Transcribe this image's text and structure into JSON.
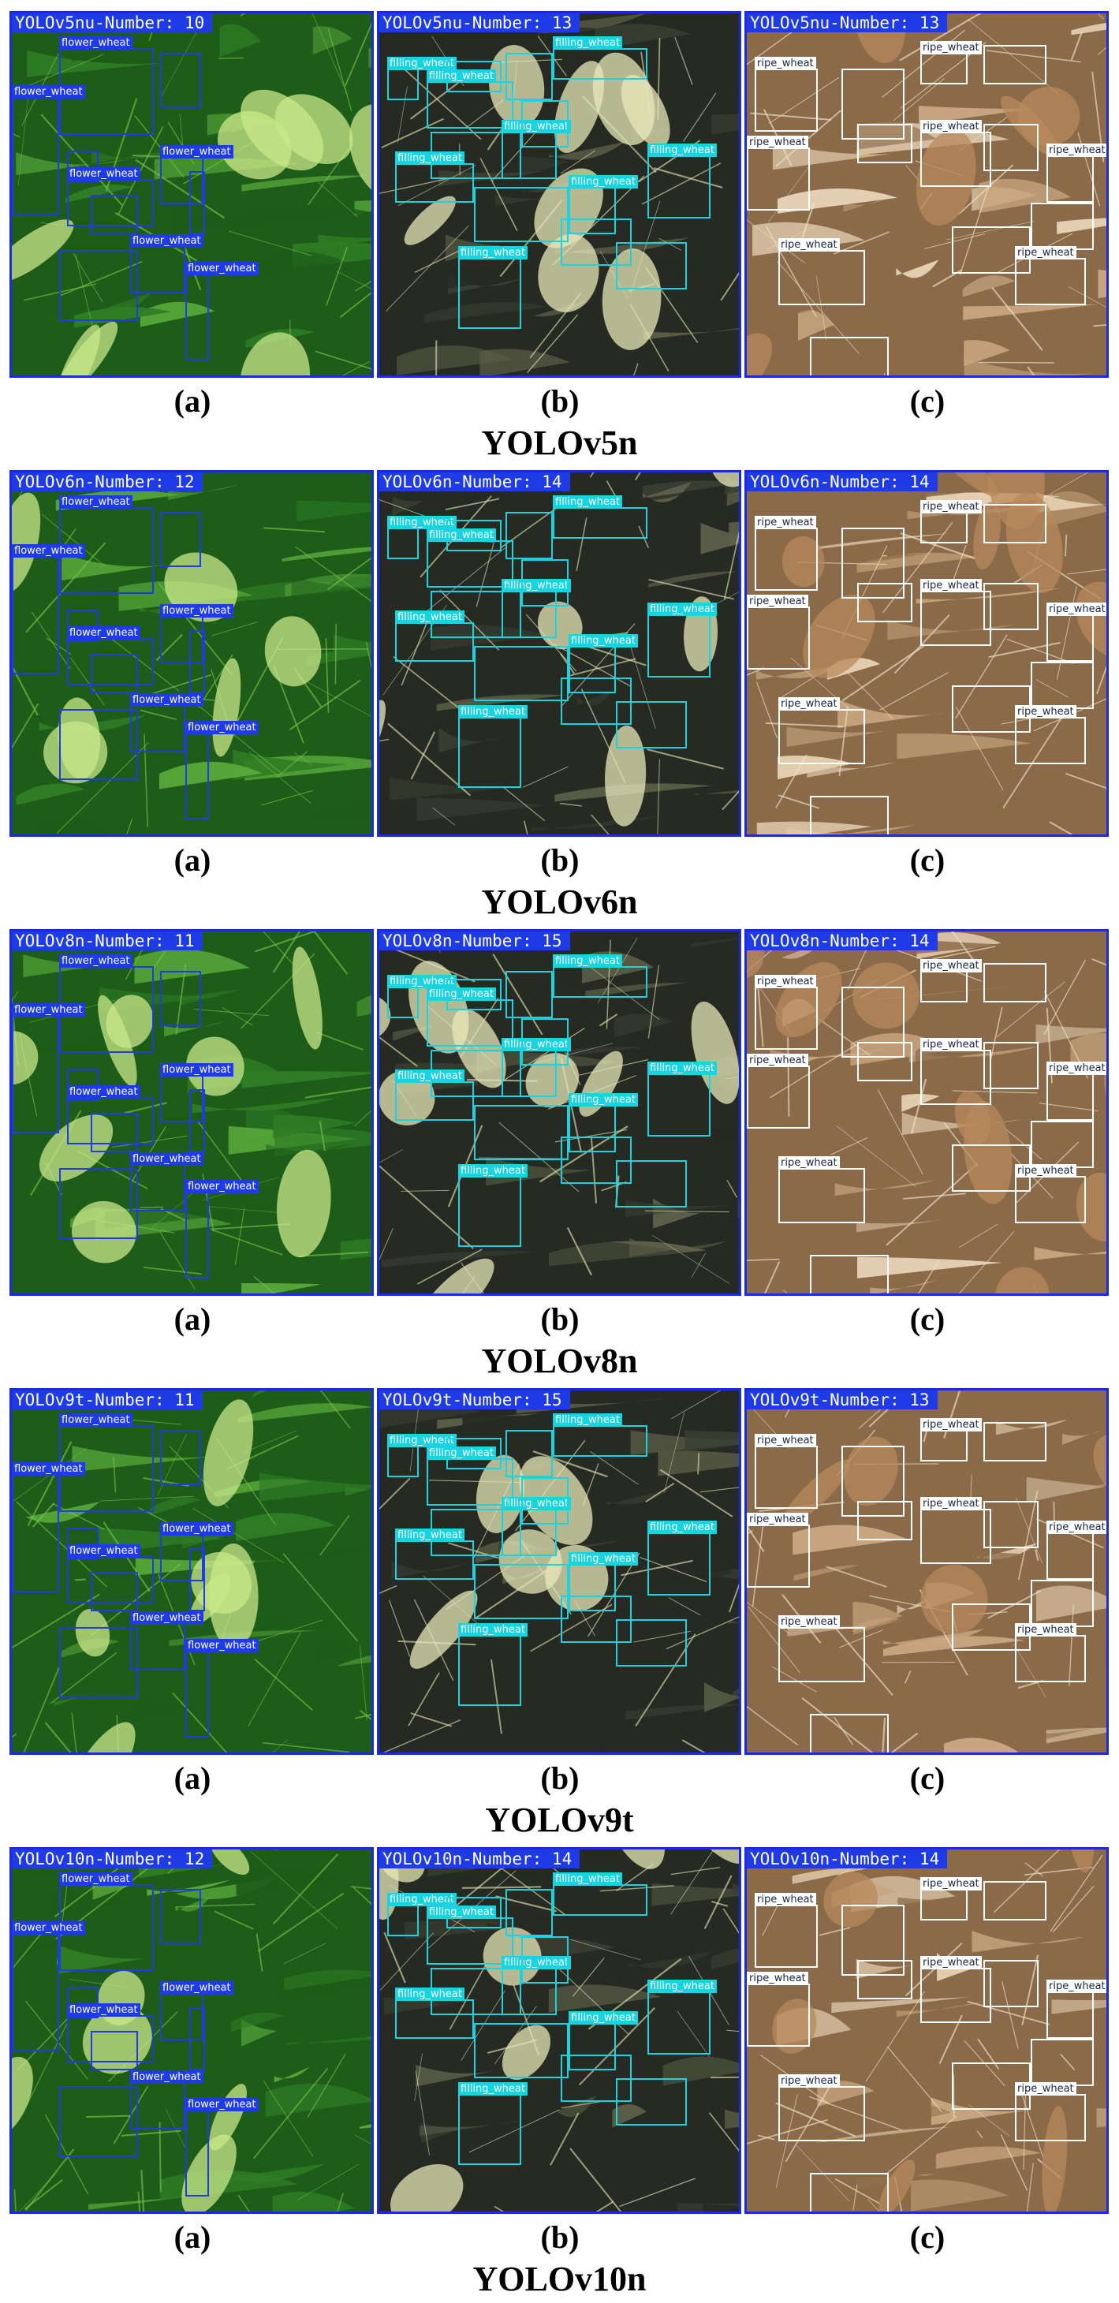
{
  "subfigure_labels": [
    "(a)",
    "(b)",
    "(c)"
  ],
  "class_labels": {
    "flower": "flower_wheat",
    "filling": "filling_wheat",
    "ripe": "ripe_wheat"
  },
  "colors": {
    "flower_box": "#1f3be6",
    "filling_box": "#19d3e0",
    "ripe_box": "#ffffff",
    "banner": "#1f3be6",
    "panel_border": "#1a2bd8"
  },
  "models": [
    {
      "title": "YOLOv5n",
      "counts": [
        "YOLOv5nu-Number: 10",
        "YOLOv5nu-Number: 13",
        "YOLOv5nu-Number: 13"
      ]
    },
    {
      "title": "YOLOv6n",
      "counts": [
        "YOLOv6n-Number: 12",
        "YOLOv6n-Number: 14",
        "YOLOv6n-Number: 14"
      ]
    },
    {
      "title": "YOLOv8n",
      "counts": [
        "YOLOv8n-Number: 11",
        "YOLOv8n-Number: 15",
        "YOLOv8n-Number: 14"
      ]
    },
    {
      "title": "YOLOv9t",
      "counts": [
        "YOLOv9t-Number: 11",
        "YOLOv9t-Number: 15",
        "YOLOv9t-Number: 13"
      ]
    },
    {
      "title": "YOLOv10n",
      "counts": [
        "YOLOv10n-Number: 12",
        "YOLOv10n-Number: 14",
        "YOLOv10n-Number: 14"
      ]
    }
  ]
}
